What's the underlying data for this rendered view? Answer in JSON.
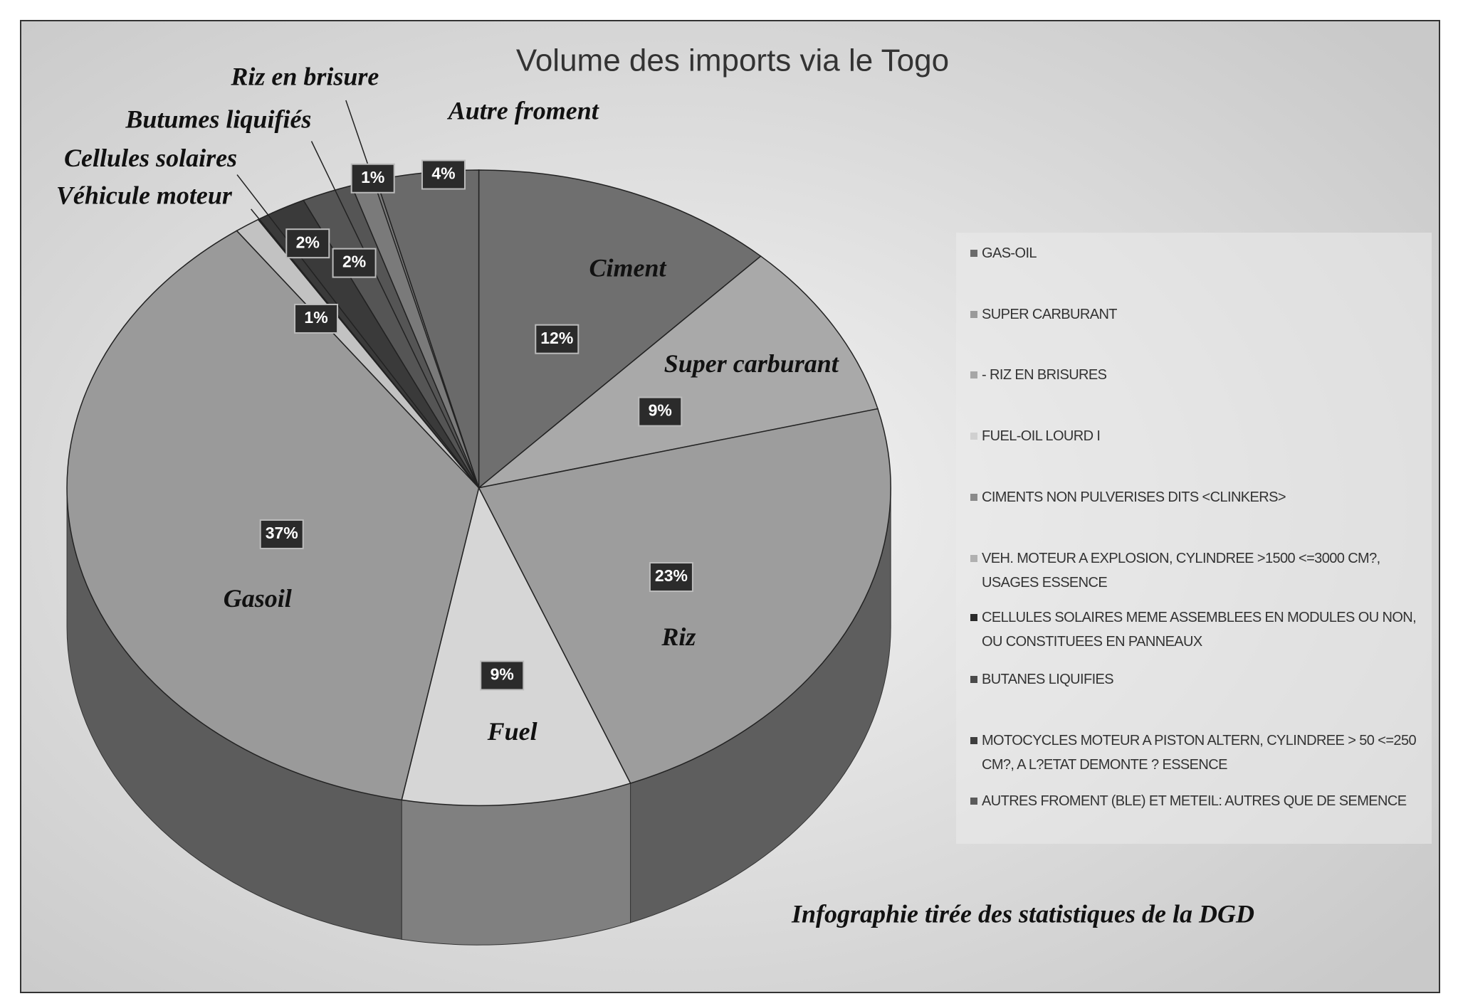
{
  "chart_data": {
    "type": "pie",
    "title": "Volume des imports via le Togo",
    "categories": [
      "Ciment",
      "Super carburant",
      "Riz",
      "Fuel",
      "Gasoil",
      "Véhicule moteur",
      "Cellules solaires",
      "Butumes liquifiés",
      "Riz en brisure",
      "Autre froment"
    ],
    "values": [
      12,
      9,
      23,
      9,
      37,
      1,
      2,
      2,
      1,
      4
    ],
    "value_labels": [
      "12%",
      "9%",
      "23%",
      "9%",
      "37%",
      "1%",
      "2%",
      "2%",
      "1%",
      "4%"
    ],
    "colors": [
      "#6f6f6f",
      "#a9a9a9",
      "#9d9d9d",
      "#d6d6d6",
      "#9a9a9a",
      "#c2c2c2",
      "#3a3a3a",
      "#555555",
      "#7a7a7a",
      "#6a6a6a"
    ],
    "legend": {
      "entries": [
        {
          "label": "GAS-OIL",
          "color": "#6a6a6a"
        },
        {
          "label": "SUPER CARBURANT",
          "color": "#9a9a9a"
        },
        {
          "label": "- RIZ EN BRISURES",
          "color": "#a6a6a6"
        },
        {
          "label": "FUEL-OIL LOURD I",
          "color": "#d0d0d0"
        },
        {
          "label": "CIMENTS NON PULVERISES DITS <CLINKERS>",
          "color": "#8a8a8a"
        },
        {
          "label": "VEH. MOTEUR A EXPLOSION, CYLINDREE >1500  <=3000 CM?, USAGES ESSENCE",
          "color": "#b0b0b0"
        },
        {
          "label": "CELLULES SOLAIRES MEME ASSEMBLEES EN MODULES OU NON, OU CONSTITUEES EN PANNEAUX",
          "color": "#2a2a2a"
        },
        {
          "label": "BUTANES LIQUIFIES",
          "color": "#4a4a4a"
        },
        {
          "label": "MOTOCYCLES MOTEUR A PISTON ALTERN, CYLINDREE > 50 <=250 CM?, A L?ETAT DEMONTE ? ESSENCE",
          "color": "#3e3e3e"
        },
        {
          "label": "AUTRES FROMENT (BLE) ET METEIL: AUTRES QUE DE SEMENCE",
          "color": "#5a5a5a"
        }
      ]
    },
    "source": "Infographie tirée des statistiques de la DGD"
  }
}
